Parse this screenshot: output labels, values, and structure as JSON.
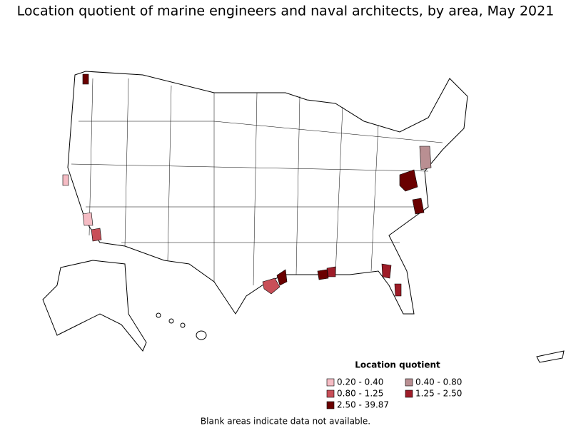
{
  "title": "Location quotient of marine engineers and naval architects, by area, May 2021",
  "legend": {
    "title": "Location quotient",
    "items": [
      {
        "label": "0.20 - 0.40",
        "color": "#f5bcc4"
      },
      {
        "label": "0.40 - 0.80",
        "color": "#b98f92"
      },
      {
        "label": "0.80 - 1.25",
        "color": "#c84f58"
      },
      {
        "label": "1.25 - 2.50",
        "color": "#9e1c28"
      },
      {
        "label": "2.50 - 39.87",
        "color": "#6a0000"
      }
    ]
  },
  "note": "Blank areas indicate data not available."
}
